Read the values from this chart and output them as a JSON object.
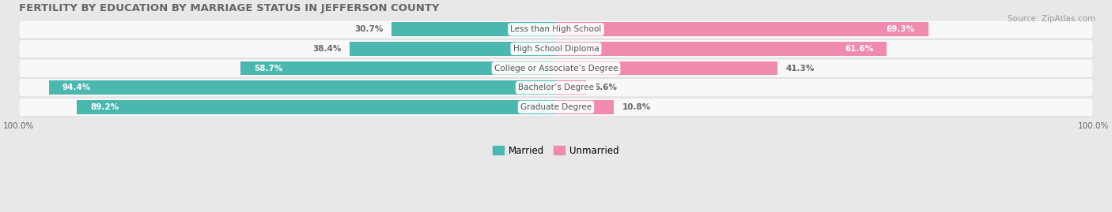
{
  "title": "FERTILITY BY EDUCATION BY MARRIAGE STATUS IN JEFFERSON COUNTY",
  "source": "Source: ZipAtlas.com",
  "categories": [
    "Less than High School",
    "High School Diploma",
    "College or Associate’s Degree",
    "Bachelor’s Degree",
    "Graduate Degree"
  ],
  "married_values": [
    30.7,
    38.4,
    58.7,
    94.4,
    89.2
  ],
  "unmarried_values": [
    69.3,
    61.6,
    41.3,
    5.6,
    10.8
  ],
  "married_color": "#4BB8B0",
  "unmarried_color": "#F08AAF",
  "bar_height": 0.72,
  "background_color": "#e8e8e8",
  "row_bg_color": "#f8f8f8",
  "row_border_color": "#dddddd",
  "xlim": [
    -100,
    100
  ],
  "title_fontsize": 9.5,
  "label_fontsize": 7.5,
  "source_fontsize": 7.5,
  "legend_fontsize": 8.5,
  "title_color": "#666666",
  "label_color_inside": "#ffffff",
  "label_color_outside": "#666666",
  "center_label_color": "#555555"
}
